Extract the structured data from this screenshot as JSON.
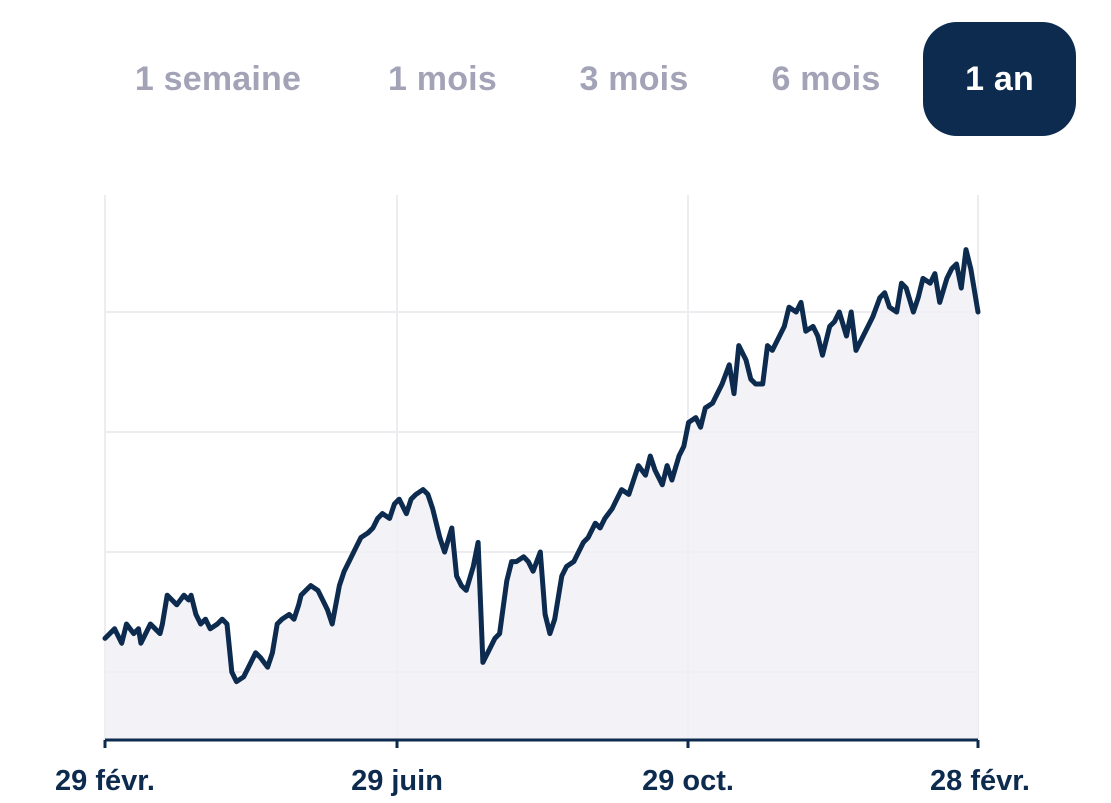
{
  "range_tabs": [
    {
      "label": "1 semaine",
      "active": false
    },
    {
      "label": "1 mois",
      "active": false
    },
    {
      "label": "3 mois",
      "active": false
    },
    {
      "label": "6 mois",
      "active": false
    },
    {
      "label": "1 an",
      "active": true
    }
  ],
  "colors": {
    "line": "#0c2b4e",
    "fill": "#f1f0f6",
    "grid": "#ececf1",
    "axis": "#0c2b4e",
    "tab_inactive_text": "#a3a3b8",
    "tab_active_bg": "#0c2b4e",
    "tab_active_text": "#ffffff"
  },
  "chart_data": {
    "type": "area",
    "title": "",
    "xlabel": "",
    "ylabel": "",
    "x_ticks": [
      "29 févr.",
      "29 juin",
      "29 oct.",
      "28 févr."
    ],
    "y_axis_labels_visible": false,
    "grid": true,
    "xlim": [
      0,
      365
    ],
    "ylim": [
      0,
      100
    ],
    "series": [
      {
        "x": [
          0,
          4,
          7,
          9,
          12,
          14,
          15,
          19,
          21,
          23,
          24,
          26,
          28,
          30,
          33,
          35,
          36,
          38,
          40,
          42,
          44,
          47,
          49,
          51,
          53,
          55,
          58,
          61,
          63,
          65,
          68,
          70,
          72,
          74,
          77,
          79,
          81,
          82,
          84,
          86,
          89,
          91,
          93,
          95,
          98,
          100,
          102,
          105,
          107,
          110,
          112,
          114,
          116,
          119,
          121,
          123,
          126,
          128,
          130,
          133,
          135,
          137,
          140,
          142,
          145,
          147,
          149,
          151,
          154,
          156,
          158,
          161,
          163,
          165,
          168,
          170,
          172,
          175,
          177,
          179,
          182,
          184,
          186,
          188,
          191,
          193,
          196,
          198,
          200,
          202,
          205,
          207,
          209,
          212,
          214,
          216,
          219,
          221,
          223,
          226,
          228,
          230,
          233,
          235,
          237,
          240,
          242,
          244,
          247,
          249,
          251,
          254,
          256,
          258,
          261,
          263,
          265,
          268,
          270,
          272,
          275,
          277,
          279,
          282,
          284,
          286,
          289,
          291,
          293,
          296,
          298,
          300,
          303,
          305,
          307,
          310,
          312,
          314,
          317,
          319,
          321,
          324,
          326,
          328,
          331,
          333,
          335,
          338,
          340,
          342,
          345,
          347,
          349,
          352,
          354,
          356,
          358,
          360,
          362,
          365
        ],
        "values": [
          17,
          19,
          16,
          20,
          18,
          19,
          16,
          20,
          19,
          18,
          20,
          26,
          25,
          24,
          26,
          25,
          26,
          22,
          20,
          21,
          19,
          20,
          21,
          20,
          10,
          8,
          9,
          12,
          14,
          13,
          11,
          14,
          20,
          21,
          22,
          21,
          24,
          26,
          27,
          28,
          27,
          25,
          23,
          20,
          28,
          31,
          33,
          36,
          38,
          39,
          40,
          42,
          43,
          42,
          45,
          46,
          43,
          46,
          47,
          48,
          47,
          44,
          38,
          35,
          40,
          30,
          28,
          27,
          32,
          37,
          12,
          15,
          17,
          18,
          29,
          33,
          33,
          34,
          33,
          31,
          35,
          22,
          18,
          21,
          30,
          32,
          33,
          35,
          37,
          38,
          41,
          40,
          42,
          44,
          46,
          48,
          47,
          50,
          53,
          51,
          55,
          52,
          49,
          53,
          50,
          55,
          57,
          62,
          63,
          61,
          65,
          66,
          68,
          70,
          74,
          68,
          78,
          75,
          71,
          70,
          70,
          78,
          77,
          80,
          82,
          86,
          85,
          87,
          81,
          82,
          80,
          76,
          82,
          83,
          85,
          80,
          85,
          77,
          80,
          82,
          84,
          88,
          89,
          86,
          85,
          91,
          90,
          85,
          88,
          92,
          91,
          93,
          87,
          92,
          94,
          95,
          90,
          98,
          94,
          85
        ]
      }
    ]
  }
}
